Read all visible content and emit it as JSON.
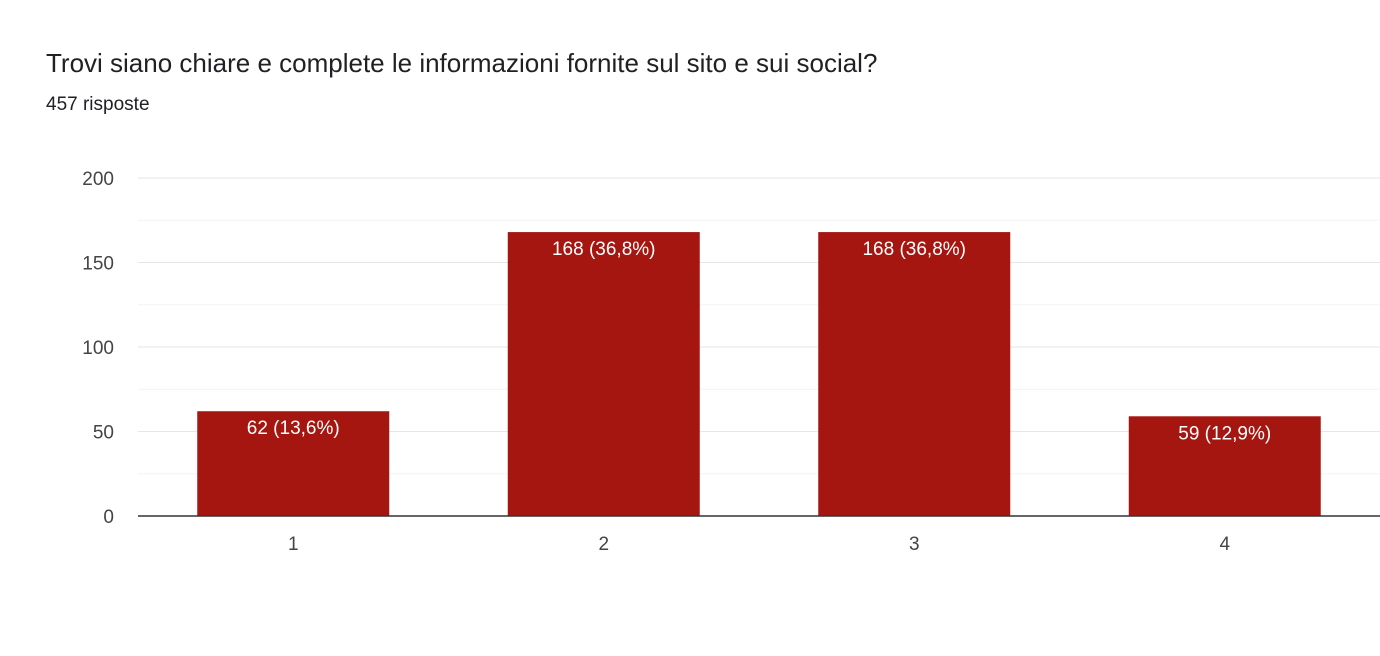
{
  "header": {
    "question": "Trovi siano chiare e complete le informazioni fornite sul sito e sui social?",
    "responses": "457 risposte"
  },
  "colors": {
    "bar": "#a61611",
    "grid_major": "#e6e6e6",
    "grid_minor": "#f3f3f3",
    "baseline": "#333333"
  },
  "chart_data": {
    "type": "bar",
    "categories": [
      "1",
      "2",
      "3",
      "4"
    ],
    "values": [
      62,
      168,
      168,
      59
    ],
    "labels": [
      "62 (13,6%)",
      "168 (36,8%)",
      "168 (36,8%)",
      "59 (12,9%)"
    ],
    "ylim": [
      0,
      200
    ],
    "yticks": [
      0,
      50,
      100,
      150,
      200
    ],
    "grid": true
  }
}
